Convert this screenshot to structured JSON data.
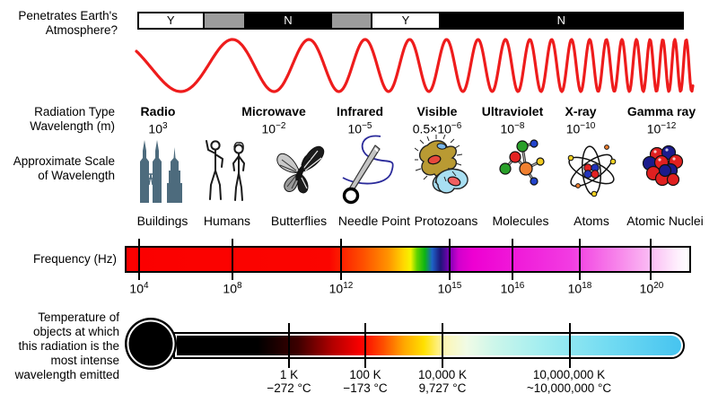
{
  "title_block": {
    "line1": "Penetrates Earth's",
    "line2": "Atmosphere?"
  },
  "atmosphere_bar": {
    "segments": [
      {
        "label": "Y",
        "fill": "white"
      },
      {
        "label": "",
        "fill": "gray"
      },
      {
        "label": "N",
        "fill": "black"
      },
      {
        "label": "",
        "fill": "gray"
      },
      {
        "label": "Y",
        "fill": "white"
      },
      {
        "label": "N",
        "fill": "black"
      }
    ]
  },
  "radiation": {
    "type_label": "Radiation Type",
    "wavelength_label": "Wavelength (m)",
    "bands": [
      {
        "name": "Radio",
        "wl_base": "10",
        "wl_exp": "3"
      },
      {
        "name": "Microwave",
        "wl_base": "10",
        "wl_exp": "−2"
      },
      {
        "name": "Infrared",
        "wl_base": "10",
        "wl_exp": "−5"
      },
      {
        "name": "Visible",
        "wl_base": "0.5×10",
        "wl_exp": "−6"
      },
      {
        "name": "Ultraviolet",
        "wl_base": "10",
        "wl_exp": "−8"
      },
      {
        "name": "X-ray",
        "wl_base": "10",
        "wl_exp": "−10"
      },
      {
        "name": "Gamma ray",
        "wl_base": "10",
        "wl_exp": "−12"
      }
    ]
  },
  "scale": {
    "label_line1": "Approximate Scale",
    "label_line2": "of Wavelength",
    "items": [
      {
        "caption": "Buildings",
        "icon": "buildings-icon"
      },
      {
        "caption": "Humans",
        "icon": "humans-icon"
      },
      {
        "caption": "Butterflies",
        "icon": "butterfly-icon"
      },
      {
        "caption": "Needle Point",
        "icon": "needle-icon"
      },
      {
        "caption": "Protozoans",
        "icon": "protozoan-icon"
      },
      {
        "caption": "Molecules",
        "icon": "molecule-icon"
      },
      {
        "caption": "Atoms",
        "icon": "atom-icon"
      },
      {
        "caption": "Atomic Nuclei",
        "icon": "atomic-nucleus-icon"
      }
    ]
  },
  "frequency": {
    "label": "Frequency (Hz)",
    "ticks": [
      {
        "base": "10",
        "exp": "4"
      },
      {
        "base": "10",
        "exp": "8"
      },
      {
        "base": "10",
        "exp": "12"
      },
      {
        "base": "10",
        "exp": "15"
      },
      {
        "base": "10",
        "exp": "16"
      },
      {
        "base": "10",
        "exp": "18"
      },
      {
        "base": "10",
        "exp": "20"
      }
    ]
  },
  "temperature": {
    "label_lines": [
      "Temperature of",
      "objects at which",
      "this radiation is the",
      "most intense",
      "wavelength emitted"
    ],
    "ticks": [
      {
        "kelvin": "1 K",
        "celsius": "−272 °C"
      },
      {
        "kelvin": "100 K",
        "celsius": "−173 °C"
      },
      {
        "kelvin": "10,000 K",
        "celsius": "9,727 °C"
      },
      {
        "kelvin": "10,000,000 K",
        "celsius": "~10,000,000 °C"
      }
    ]
  },
  "colors": {
    "wave_red": "#ee1c1c",
    "segment_gray": "#9c9c9c",
    "buildings_slate": "#4d6b7d",
    "visible_band": [
      "#ff0000",
      "#ff9300",
      "#f4f400",
      "#0cb414",
      "#1e64c8",
      "#1e1478"
    ],
    "freq_magenta": "#ee00d2",
    "thermo_start_black": "#000000",
    "thermo_red": "#fb0000",
    "thermo_cyan_end": "#46c4f0"
  }
}
